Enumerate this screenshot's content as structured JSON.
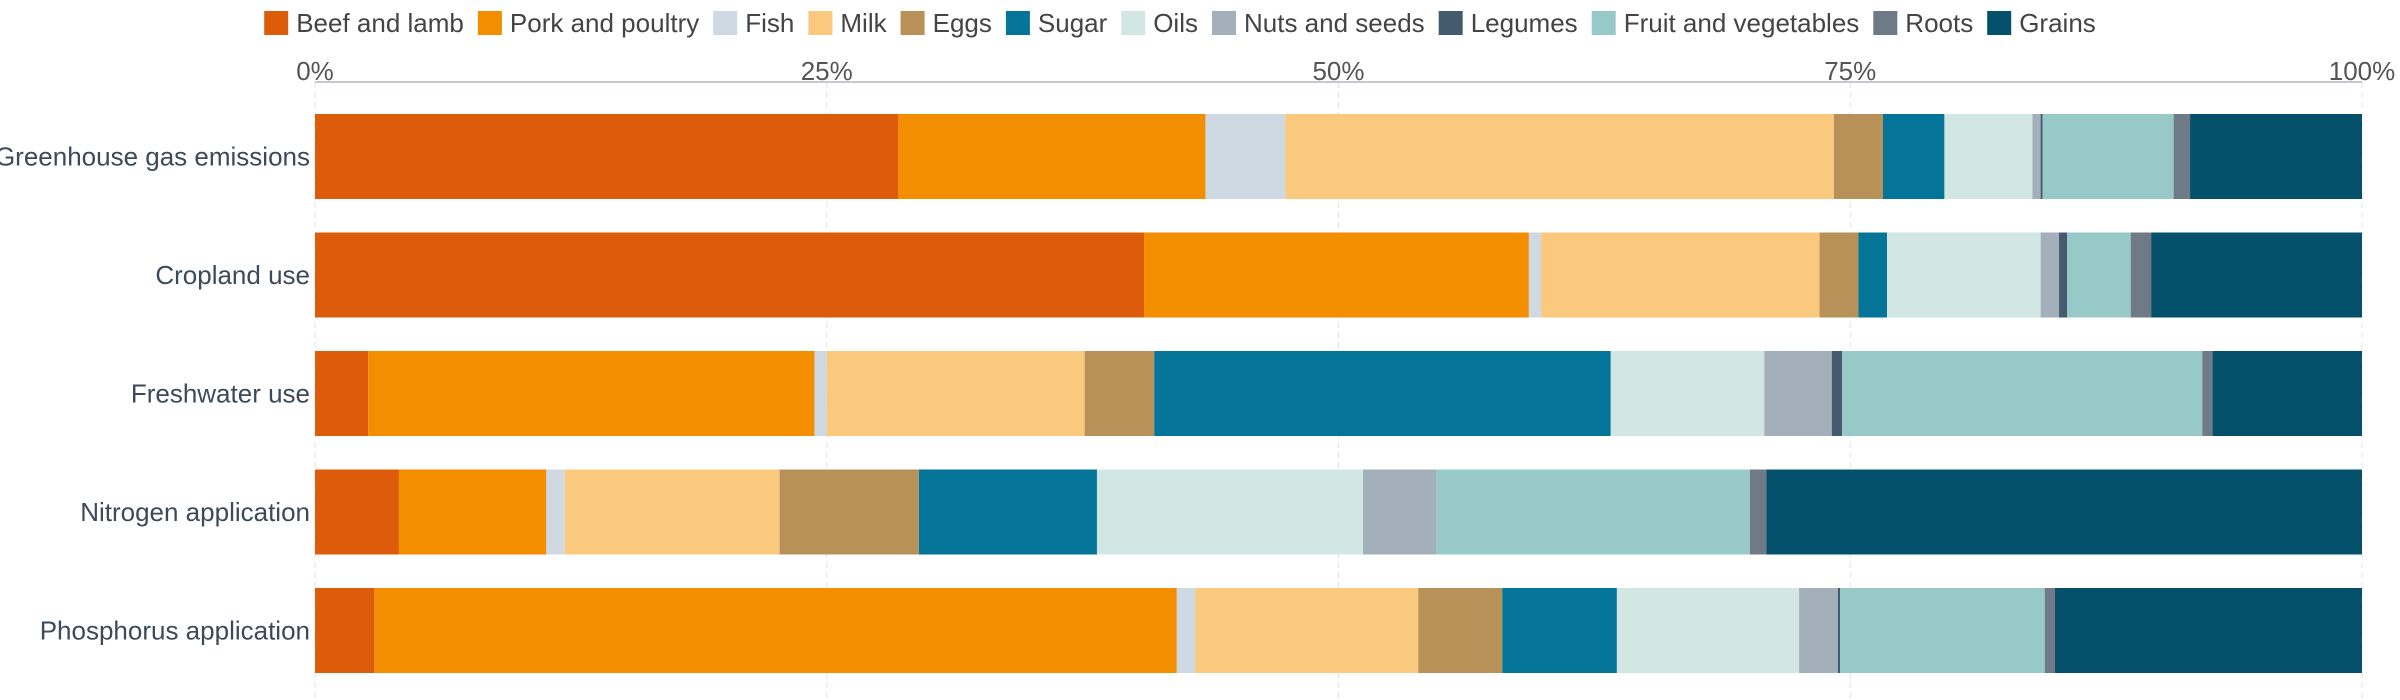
{
  "chart_data": {
    "type": "bar",
    "orientation": "horizontal",
    "stacked": true,
    "normalized": true,
    "categories": [
      "Greenhouse gas emissions",
      "Cropland use",
      "Freshwater use",
      "Nitrogen application",
      "Phosphorus application"
    ],
    "x_ticks": [
      "0%",
      "25%",
      "50%",
      "75%",
      "100%"
    ],
    "xlim": [
      0,
      100
    ],
    "x_axis_position": "top",
    "grid": true,
    "legend_position": "top",
    "series": [
      {
        "name": "Beef and lamb",
        "color": "#dd5c0c",
        "values": [
          28.5,
          40.5,
          2.6,
          4.1,
          2.9
        ]
      },
      {
        "name": "Pork and poultry",
        "color": "#f28e00",
        "values": [
          15.0,
          18.8,
          21.8,
          7.2,
          39.2
        ]
      },
      {
        "name": "Fish",
        "color": "#cfd9e3",
        "values": [
          3.9,
          0.6,
          0.6,
          0.9,
          0.9
        ]
      },
      {
        "name": "Milk",
        "color": "#fac97d",
        "values": [
          26.8,
          13.6,
          12.6,
          10.5,
          10.9
        ]
      },
      {
        "name": "Eggs",
        "color": "#b89158",
        "values": [
          2.4,
          1.9,
          3.4,
          6.8,
          4.1
        ]
      },
      {
        "name": "Sugar",
        "color": "#047499",
        "values": [
          3.0,
          1.4,
          22.3,
          8.7,
          5.6
        ]
      },
      {
        "name": "Oils",
        "color": "#d2e7e4",
        "values": [
          4.3,
          7.5,
          7.5,
          13.0,
          8.9
        ]
      },
      {
        "name": "Nuts and seeds",
        "color": "#a3afbb",
        "values": [
          0.4,
          0.9,
          3.3,
          3.6,
          1.9
        ]
      },
      {
        "name": "Legumes",
        "color": "#445a6d",
        "values": [
          0.1,
          0.4,
          0.5,
          0.0,
          0.1
        ]
      },
      {
        "name": "Fruit and vegetables",
        "color": "#96c9c7",
        "values": [
          6.4,
          3.1,
          17.6,
          15.3,
          10.0
        ]
      },
      {
        "name": "Roots",
        "color": "#6e7a85",
        "values": [
          0.8,
          1.0,
          0.5,
          0.8,
          0.5
        ]
      },
      {
        "name": "Grains",
        "color": "#05506b",
        "values": [
          8.4,
          10.3,
          7.3,
          29.1,
          15.0
        ]
      }
    ]
  }
}
